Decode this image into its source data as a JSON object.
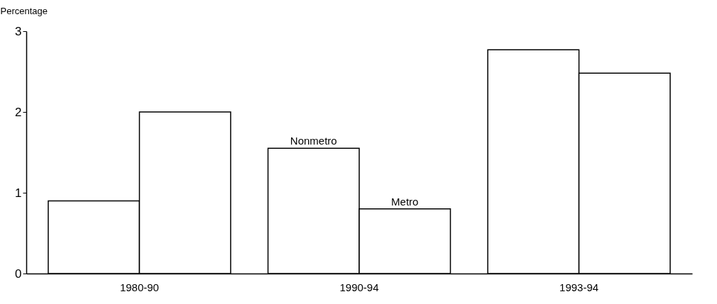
{
  "chart_data": {
    "type": "bar",
    "ylabel": "Percentage",
    "categories": [
      "1980-90",
      "1990-94",
      "1993-94"
    ],
    "series": [
      {
        "name": "Nonmetro",
        "color": "#ffffff",
        "values": [
          0.9,
          1.55,
          2.77
        ]
      },
      {
        "name": "Metro",
        "color": "#ffffff",
        "values": [
          2.0,
          0.8,
          2.48
        ]
      }
    ],
    "ylim": [
      0,
      3
    ],
    "yticks": [
      0,
      1,
      2,
      3
    ],
    "grid": false,
    "legend": false
  }
}
